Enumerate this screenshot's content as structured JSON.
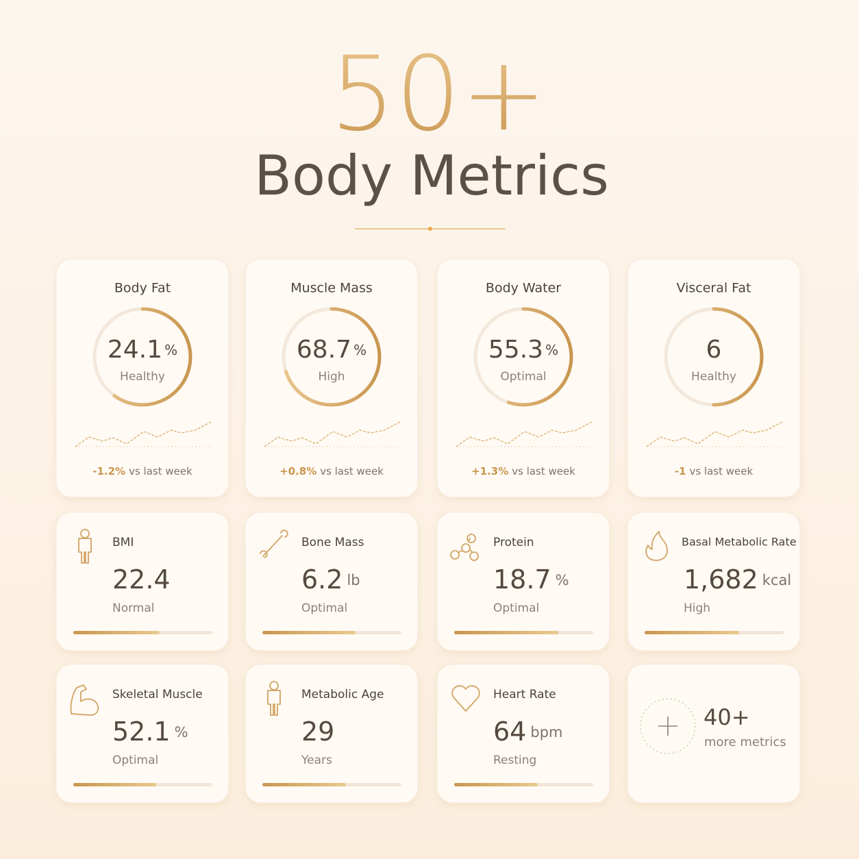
{
  "header": {
    "number": "50+",
    "title": "Body Metrics"
  },
  "summary_cards": [
    {
      "title": "Body Fat",
      "value": "24.1",
      "unit": "%",
      "status": "Healthy",
      "progress": 0.6,
      "change": "-1.2%",
      "change_text": "vs last week"
    },
    {
      "title": "Muscle Mass",
      "value": "68.7",
      "unit": "%",
      "status": "High",
      "progress": 0.7,
      "change": "+0.8%",
      "change_text": "vs last week"
    },
    {
      "title": "Body Water",
      "value": "55.3",
      "unit": "%",
      "status": "Optimal",
      "progress": 0.55,
      "change": "+1.3%",
      "change_text": "vs last week"
    },
    {
      "title": "Visceral Fat",
      "value": "6",
      "status": "Healthy",
      "progress": 0.5,
      "change": "-1",
      "change_text": "vs last week"
    }
  ],
  "metric_cards": [
    {
      "icon": "person",
      "title": "BMI",
      "value": "22.4",
      "status": "Normal",
      "progress": 0.62
    },
    {
      "icon": "bone",
      "title": "Bone Mass",
      "value": "6.2",
      "unit": "lb",
      "status": "Optimal",
      "progress": 0.67
    },
    {
      "icon": "molecule",
      "title": "Protein",
      "value": "18.7",
      "unit": "%",
      "status": "Optimal",
      "progress": 0.75
    },
    {
      "icon": "flame",
      "title": "Basal Metabolic Rate",
      "value": "1,682",
      "unit": "kcal",
      "status": "High",
      "progress": 0.68
    },
    {
      "icon": "muscle",
      "title": "Skeletal Muscle",
      "value": "52.1",
      "unit": "%",
      "status": "Optimal",
      "progress": 0.6
    },
    {
      "icon": "person",
      "title": "Metabolic Age",
      "value": "29",
      "status": "Years",
      "progress": 0.6
    },
    {
      "icon": "heart",
      "title": "Heart Rate",
      "value": "64",
      "unit": "bpm",
      "status": "Resting",
      "progress": 0.6
    }
  ],
  "more_card": {
    "count": "40+",
    "label": "more metrics"
  }
}
